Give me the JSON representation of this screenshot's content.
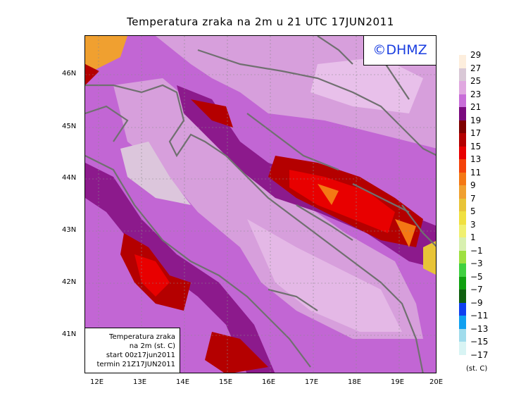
{
  "title": "Temperatura zraka na 2m u 21 UTC 17JUN2011",
  "logo": "©DHMZ",
  "info_box": [
    "Temperatura zraka",
    "na 2m (st. C)",
    "start 00z17jun2011",
    "termin 21Z17JUN2011"
  ],
  "axes": {
    "lon_ticks": [
      "12E",
      "13E",
      "14E",
      "15E",
      "16E",
      "17E",
      "18E",
      "19E",
      "20E"
    ],
    "lat_ticks": [
      "46N",
      "45N",
      "44N",
      "43N",
      "42N",
      "41N"
    ]
  },
  "legend": {
    "labels": [
      "29",
      "27",
      "25",
      "23",
      "21",
      "19",
      "17",
      "15",
      "13",
      "11",
      "9",
      "7",
      "5",
      "3",
      "1",
      "−1",
      "−3",
      "−5",
      "−7",
      "−9",
      "−11",
      "−13",
      "−15",
      "−17"
    ],
    "colors": [
      "#fdeedd",
      "#d9c8d6",
      "#e0a8e0",
      "#c86ed8",
      "#7a0a7e",
      "#7e0000",
      "#b40000",
      "#e80000",
      "#f4420a",
      "#f47814",
      "#f0a030",
      "#e8c438",
      "#f0e040",
      "#f0f070",
      "#d8f0b0",
      "#9ee040",
      "#40d040",
      "#10a010",
      "#106010",
      "#1040f0",
      "#10a0f0",
      "#a0dcec",
      "#d8f4f4"
    ],
    "unit": "(st. C)"
  },
  "colors": {
    "purple_mid": "#d79fdc",
    "purple_light": "#e8c0ea",
    "purple": "#c266d4",
    "dark_purple": "#8c1a8c",
    "border": "#707070"
  }
}
